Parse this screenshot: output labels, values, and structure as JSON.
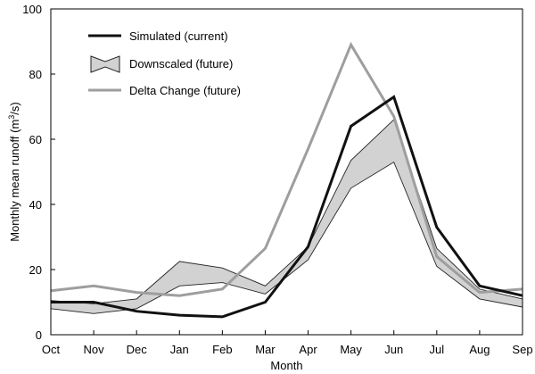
{
  "chart_data": {
    "type": "line",
    "xlabel": "Month",
    "ylabel_main": "Monthly mean runoff (m",
    "ylabel_sup": "3",
    "ylabel_tail": "/s)",
    "categories": [
      "Oct",
      "Nov",
      "Dec",
      "Jan",
      "Feb",
      "Mar",
      "Apr",
      "May",
      "Jun",
      "Jul",
      "Aug",
      "Sep"
    ],
    "ylim": [
      0,
      100
    ],
    "yticks": [
      "0",
      "20",
      "40",
      "60",
      "80",
      "100"
    ],
    "grid": false,
    "legend_position": "top-left",
    "series": [
      {
        "name": "Simulated (current)",
        "style": "line",
        "color": "#111111",
        "values": [
          10,
          10,
          7.2,
          6,
          5.5,
          10,
          27,
          64,
          73,
          33,
          15,
          12
        ]
      },
      {
        "name": "Downscaled (future)",
        "style": "band",
        "color": "#d2d2d2",
        "upper": [
          10.5,
          9.5,
          11,
          22.5,
          20.5,
          15,
          27,
          53.5,
          66,
          26.5,
          14,
          11
        ],
        "lower": [
          8,
          6.5,
          8,
          15,
          16,
          12.5,
          23,
          45,
          53,
          21,
          11,
          8.5
        ]
      },
      {
        "name": "Delta Change (future)",
        "style": "line",
        "color": "#9e9e9e",
        "values": [
          13.5,
          15,
          13,
          12,
          14,
          26.5,
          57,
          89,
          67,
          24,
          13,
          14
        ]
      }
    ]
  }
}
